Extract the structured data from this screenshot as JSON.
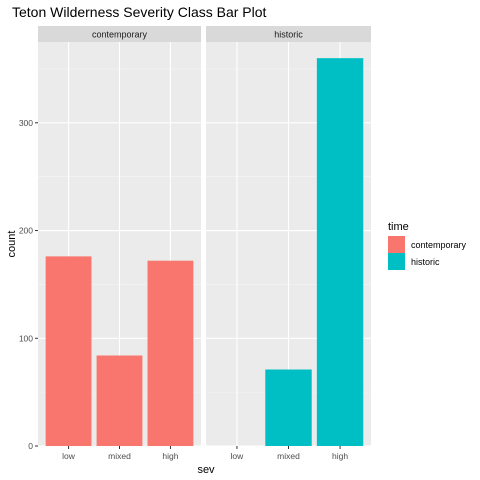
{
  "chart_data": {
    "type": "bar",
    "title": "Teton Wilderness Severity Class Bar Plot",
    "xlabel": "sev",
    "ylabel": "count",
    "ylim": [
      0,
      375
    ],
    "yticks": [
      0,
      100,
      200,
      300
    ],
    "categories": [
      "low",
      "mixed",
      "high"
    ],
    "facets": [
      {
        "label": "contemporary",
        "values": [
          176,
          84,
          172
        ],
        "color": "#F8766D"
      },
      {
        "label": "historic",
        "values": [
          0,
          71,
          360
        ],
        "color": "#00BFC4"
      }
    ],
    "legend": {
      "title": "time",
      "position": "right",
      "items": [
        {
          "label": "contemporary",
          "color": "#F8766D"
        },
        {
          "label": "historic",
          "color": "#00BFC4"
        }
      ]
    },
    "grid": true
  }
}
